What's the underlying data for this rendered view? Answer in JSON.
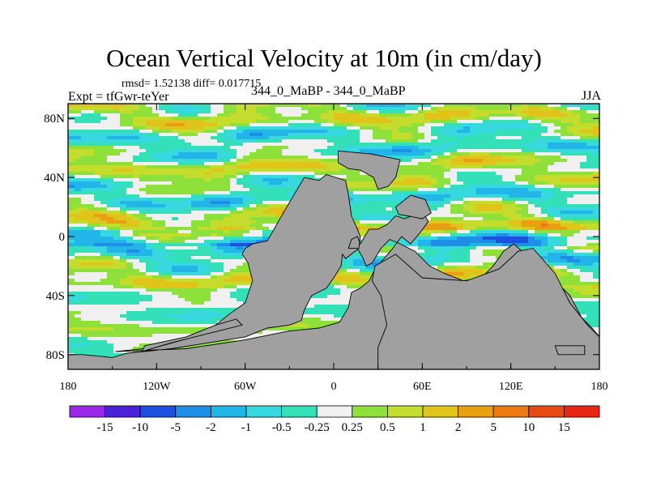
{
  "chart_data": {
    "type": "heatmap",
    "title": "Ocean Vertical Velocity at 10m (in cm/day)",
    "stats_line": "rmsd= 1.52138 diff= 0.017715",
    "experiment_label": "Expt = tfGwr-teYer",
    "runs_label": "344_0_MaBP - 344_0_MaBP",
    "season": "JJA",
    "x_range": [
      -180,
      180
    ],
    "y_range": [
      -90,
      90
    ],
    "x_ticks": [
      {
        "value": -180,
        "label": "180"
      },
      {
        "value": -120,
        "label": "120W"
      },
      {
        "value": -60,
        "label": "60W"
      },
      {
        "value": 0,
        "label": "0"
      },
      {
        "value": 60,
        "label": "60E"
      },
      {
        "value": 120,
        "label": "120E"
      },
      {
        "value": 180,
        "label": "180"
      }
    ],
    "y_ticks": [
      {
        "value": 80,
        "label": "80N"
      },
      {
        "value": 40,
        "label": "40N"
      },
      {
        "value": 0,
        "label": "0"
      },
      {
        "value": -40,
        "label": "40S"
      },
      {
        "value": -80,
        "label": "80S"
      }
    ],
    "colorbar": {
      "levels": [
        "-15",
        "-10",
        "-5",
        "-2",
        "-1",
        "-0.5",
        "-0.25",
        "0.25",
        "0.5",
        "1",
        "2",
        "5",
        "10",
        "15"
      ],
      "colors": [
        "#9a28e8",
        "#4a22d8",
        "#1e50e0",
        "#1e8ee6",
        "#22b6e8",
        "#38d8e0",
        "#34e0b8",
        "#f0f0f0",
        "#8ee03a",
        "#c4dc2c",
        "#e0c41a",
        "#e8a012",
        "#ec7a12",
        "#e84a14",
        "#e82814"
      ]
    },
    "land_color": "#a0a0a0"
  }
}
